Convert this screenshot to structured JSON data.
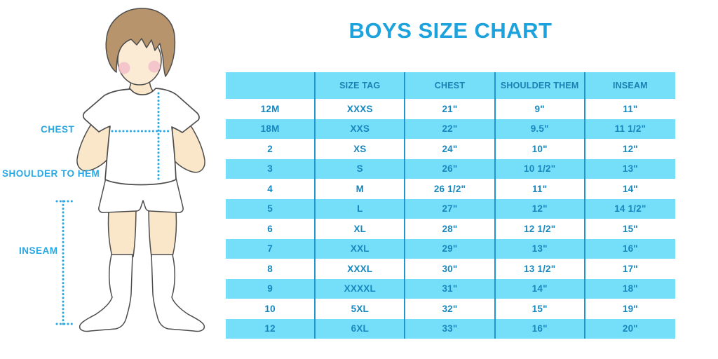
{
  "header": {
    "title": "BOYS SIZE CHART"
  },
  "figure_labels": {
    "chest": "CHEST",
    "shoulder_to_hem": "SHOULDER TO HEM",
    "inseam": "INSEAM"
  },
  "colors": {
    "title_blue": "#1CA2DC",
    "table_text": "#1787BE",
    "row_band": "#75DFFA",
    "divider": "#2196CE",
    "measure_cyan": "#29A7E3",
    "skin": "#FAE7C9",
    "hair": "#B7946B",
    "blush": "#F3BDC9",
    "outline": "#4D4D4D"
  },
  "chart_data": {
    "type": "table",
    "title": "BOYS SIZE CHART",
    "columns": [
      "",
      "SIZE TAG",
      "CHEST",
      "SHOULDER THEM",
      "INSEAM"
    ],
    "rows": [
      [
        "12M",
        "XXXS",
        "21\"",
        "9\"",
        "11\""
      ],
      [
        "18M",
        "XXS",
        "22\"",
        "9.5\"",
        "11 1/2\""
      ],
      [
        "2",
        "XS",
        "24\"",
        "10\"",
        "12\""
      ],
      [
        "3",
        "S",
        "26\"",
        "10 1/2\"",
        "13\""
      ],
      [
        "4",
        "M",
        "26 1/2\"",
        "11\"",
        "14\""
      ],
      [
        "5",
        "L",
        "27\"",
        "12\"",
        "14 1/2\""
      ],
      [
        "6",
        "XL",
        "28\"",
        "12 1/2\"",
        "15\""
      ],
      [
        "7",
        "XXL",
        "29\"",
        "13\"",
        "16\""
      ],
      [
        "8",
        "XXXL",
        "30\"",
        "13 1/2\"",
        "17\""
      ],
      [
        "9",
        "XXXXL",
        "31\"",
        "14\"",
        "18\""
      ],
      [
        "10",
        "5XL",
        "32\"",
        "15\"",
        "19\""
      ],
      [
        "12",
        "6XL",
        "33\"",
        "16\"",
        "20\""
      ]
    ]
  }
}
